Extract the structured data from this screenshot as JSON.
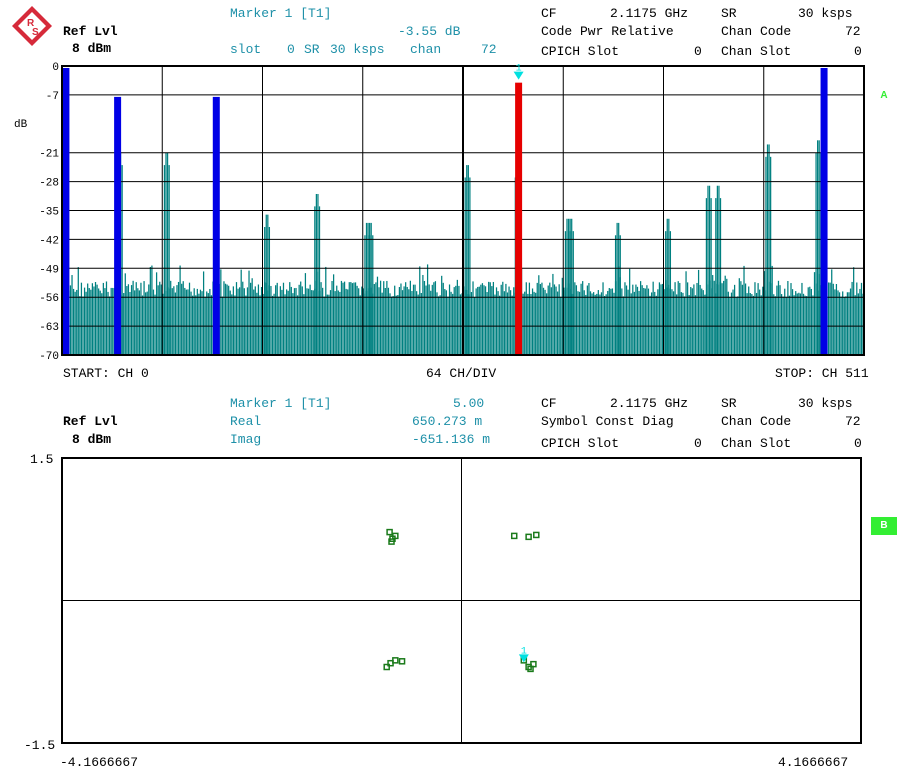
{
  "colors": {
    "bar": "#008080",
    "blue": "#0000e6",
    "red": "#e60000",
    "marker": "#00e0e0",
    "const": "#1a7a1a",
    "badge": "#33ee33"
  },
  "icons": {
    "logo": "rohde-schwarz-logo-icon",
    "marker": "marker-triangle-icon"
  },
  "top": {
    "ref_lvl_label": "Ref Lvl",
    "ref_lvl_value": "8 dBm",
    "marker_title": "Marker 1 [T1]",
    "marker_value": "-3.55 dB",
    "marker_line2_a": "slot",
    "marker_line2_b": "0",
    "marker_line2_c": "SR",
    "marker_line2_d": "30 ksps",
    "marker_line2_e": "chan",
    "marker_line2_f": "72",
    "cf_label": "CF",
    "cf_value": "2.1175 GHz",
    "sr_label": "SR",
    "sr_value": "30 ksps",
    "mode": "Code Pwr Relative",
    "chan_code_label": "Chan Code",
    "chan_code_value": "72",
    "cpich_label": "CPICH Slot",
    "cpich_value": "0",
    "chan_slot_label": "Chan Slot",
    "chan_slot_value": "0",
    "unit": "dB",
    "trace_badge": "A",
    "start_label": "START: CH 0",
    "div_label": "64 CH/DIV",
    "stop_label": "STOP: CH 511",
    "marker_num": "1"
  },
  "bottom": {
    "ref_lvl_label": "Ref Lvl",
    "ref_lvl_value": "8 dBm",
    "marker_title": "Marker 1 [T1]",
    "marker_value": "5.00",
    "real_label": "Real",
    "real_value": "650.273 m",
    "imag_label": "Imag",
    "imag_value": "-651.136 m",
    "cf_label": "CF",
    "cf_value": "2.1175 GHz",
    "sr_label": "SR",
    "sr_value": "30 ksps",
    "mode": "Symbol Const Diag",
    "chan_code_label": "Chan Code",
    "chan_code_value": "72",
    "cpich_label": "CPICH Slot",
    "cpich_value": "0",
    "chan_slot_label": "Chan Slot",
    "chan_slot_value": "0",
    "trace_badge": "B",
    "marker_num": "1"
  },
  "chart_data": [
    {
      "type": "bar",
      "ylabel": "dB",
      "ylim": [
        -70,
        0
      ],
      "yticks": [
        0,
        -7,
        -21,
        -28,
        -35,
        -42,
        -49,
        -56,
        -63,
        -70
      ],
      "xlim": [
        0,
        511
      ],
      "noise_floor_db": -52,
      "peaks": [
        {
          "ch": 36,
          "db": -21
        },
        {
          "ch": 66,
          "db": -21
        },
        {
          "ch": 130,
          "db": -36
        },
        {
          "ch": 162,
          "db": -31
        },
        {
          "ch": 194,
          "db": -38
        },
        {
          "ch": 196,
          "db": -38
        },
        {
          "ch": 258,
          "db": -24
        },
        {
          "ch": 290,
          "db": -24
        },
        {
          "ch": 322,
          "db": -37
        },
        {
          "ch": 324,
          "db": -37
        },
        {
          "ch": 354,
          "db": -38
        },
        {
          "ch": 386,
          "db": -37
        },
        {
          "ch": 412,
          "db": -29
        },
        {
          "ch": 418,
          "db": -29
        },
        {
          "ch": 450,
          "db": -19
        },
        {
          "ch": 482,
          "db": -18
        }
      ],
      "highlighted": [
        {
          "ch": 2,
          "db": 0,
          "color": "blue"
        },
        {
          "ch": 35,
          "db": -7,
          "color": "blue"
        },
        {
          "ch": 98,
          "db": -7,
          "color": "blue"
        },
        {
          "ch": 291,
          "db": -3.55,
          "color": "red"
        },
        {
          "ch": 486,
          "db": 0,
          "color": "blue"
        }
      ],
      "marker": {
        "ch": 291,
        "db": -3.55
      }
    },
    {
      "type": "scatter",
      "xlim": [
        -4.1666667,
        4.1666667
      ],
      "ylim": [
        -1.5,
        1.5
      ],
      "xtick_labels": [
        "-4.1666667",
        "4.1666667"
      ],
      "ytick_labels": [
        "1.5",
        "-1.5"
      ],
      "points": [
        {
          "x": -0.75,
          "y": 0.72
        },
        {
          "x": -0.72,
          "y": 0.65
        },
        {
          "x": -0.69,
          "y": 0.68
        },
        {
          "x": -0.73,
          "y": 0.62
        },
        {
          "x": 0.55,
          "y": 0.68
        },
        {
          "x": 0.7,
          "y": 0.67
        },
        {
          "x": 0.78,
          "y": 0.69
        },
        {
          "x": -0.78,
          "y": -0.7
        },
        {
          "x": -0.74,
          "y": -0.66
        },
        {
          "x": -0.69,
          "y": -0.63
        },
        {
          "x": -0.62,
          "y": -0.64
        },
        {
          "x": 0.65,
          "y": -0.63
        },
        {
          "x": 0.7,
          "y": -0.7
        },
        {
          "x": 0.75,
          "y": -0.67
        },
        {
          "x": 0.72,
          "y": -0.72
        }
      ],
      "marker": {
        "x": 0.650273,
        "y": -0.651136
      }
    }
  ]
}
